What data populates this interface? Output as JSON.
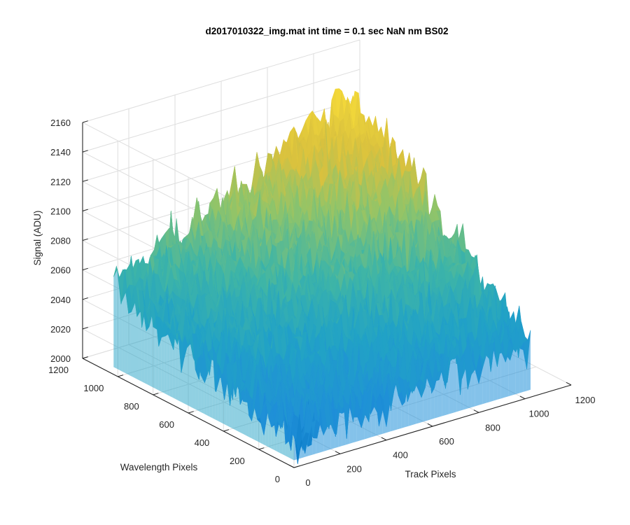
{
  "chart_data": {
    "type": "surface3d",
    "title": "d2017010322_img.mat int time = 0.1 sec  NaN nm BS02",
    "xlabel": "Track Pixels",
    "ylabel": "Wavelength Pixels",
    "zlabel": "Signal (ADU)",
    "xlim": [
      0,
      1200
    ],
    "ylim": [
      0,
      1200
    ],
    "zlim": [
      2000,
      2160
    ],
    "xticks": [
      "0",
      "200",
      "400",
      "600",
      "800",
      "1000",
      "1200"
    ],
    "yticks": [
      "0",
      "200",
      "400",
      "600",
      "800",
      "1000",
      "1200"
    ],
    "zticks": [
      "2000",
      "2020",
      "2040",
      "2060",
      "2080",
      "2100",
      "2120",
      "2140",
      "2160"
    ],
    "data_extent": {
      "track_pixels": [
        0,
        1024
      ],
      "wavelength_pixels": [
        0,
        1024
      ]
    },
    "surface_profile": {
      "signal_at_corner_track0_wav1024": 2060,
      "signal_at_corner_track1024_wav0": 2040,
      "signal_at_corner_track0_wav0": 2020,
      "signal_peak_near_track1024_wav1024": 2140,
      "noise_amplitude": 20
    },
    "colormap": [
      "#0072bd",
      "#1f8fd8",
      "#21a2c6",
      "#3fb5a6",
      "#8fc46a",
      "#d9c13e",
      "#f2d73a"
    ],
    "grid": true
  }
}
